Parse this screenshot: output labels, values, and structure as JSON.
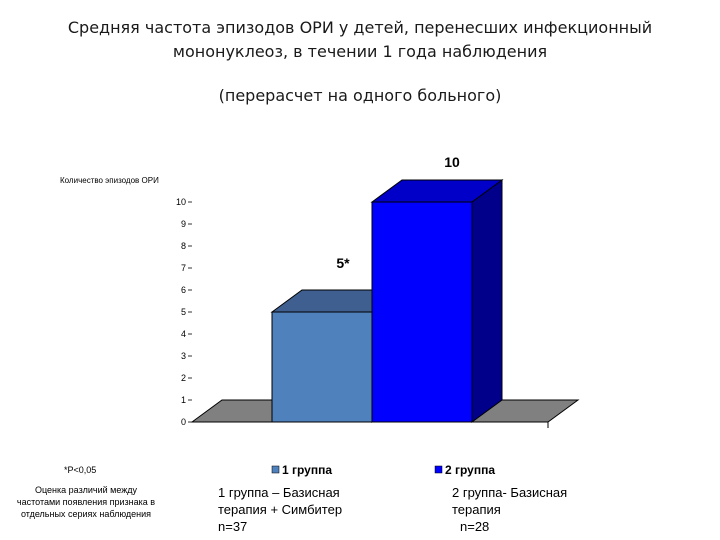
{
  "header": {
    "title_line1": "Средняя частота эпизодов ОРИ  у детей, перенесших инфекционный",
    "title_line2": "мононуклеоз, в течении 1 года наблюдения",
    "subtitle": "(перерасчет на одного больного)"
  },
  "chart_data": {
    "type": "bar",
    "ylabel": "Количество эпизодов ОРИ",
    "ylim": [
      0,
      10
    ],
    "y_ticks": [
      "0",
      "1",
      "2",
      "3",
      "4",
      "5",
      "6",
      "7",
      "8",
      "9",
      "10"
    ],
    "series": [
      {
        "name": "1 группа",
        "value": 5,
        "data_label": "5*",
        "color": "#4f81bd",
        "side": "#3a5f8c",
        "top": "#3e5f8f"
      },
      {
        "name": "2 группа",
        "value": 10,
        "data_label": "10",
        "color": "#0000ff",
        "side": "#00008b",
        "top": "#0000c8"
      }
    ],
    "legend_position": "bottom",
    "grid": false,
    "floor_color": "#808080"
  },
  "notes": {
    "p_value": "*P<0,05",
    "method_line1": "Оценка различий между",
    "method_line2": "частотами появления признака в",
    "method_line3": "отдельных сериях наблюдения"
  },
  "groups": {
    "g1_line1": "1 группа – Базисная",
    "g1_line2": "терапия + Симбитер",
    "g1_line3": "n=37",
    "g2_line1": "2 группа- Базисная",
    "g2_line2": "терапия",
    "g2_line3": "n=28"
  }
}
